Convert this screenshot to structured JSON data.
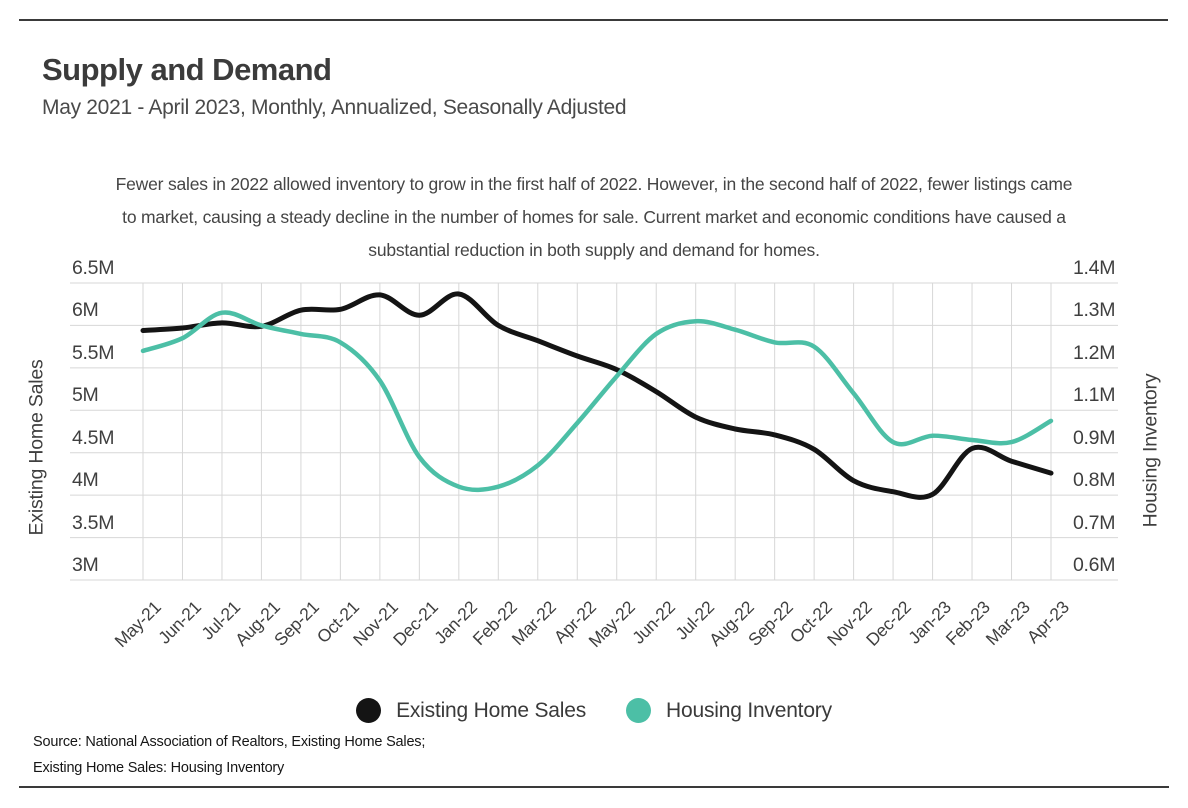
{
  "page": {
    "title": "Supply and Demand",
    "subtitle": "May 2021 - April 2023, Monthly, Annualized, Seasonally Adjusted",
    "annotation": "Fewer sales in 2022 allowed inventory to grow in the first half of 2022. However, in the second half of 2022, fewer listings came to market, causing a steady decline in the number of homes for sale. Current market and economic conditions have caused a substantial reduction in both supply and demand for homes.",
    "source_line1": "Source:  National Association of Realtors, Existing Home Sales;",
    "source_line2": "Existing Home Sales: Housing Inventory"
  },
  "legend": {
    "items": [
      {
        "label": "Existing Home Sales",
        "color": "#141414"
      },
      {
        "label": "Housing Inventory",
        "color": "#4CBFA6"
      }
    ]
  },
  "colors": {
    "sales_line": "#141414",
    "inventory_line": "#4CBFA6",
    "gridline": "#d7d7d7",
    "text_dark": "#3b3b3b"
  },
  "chart_data": {
    "type": "line",
    "title": "Supply and Demand",
    "subtitle": "May 2021 - April 2023, Monthly, Annualized, Seasonally Adjusted",
    "categories": [
      "May-21",
      "Jun-21",
      "Jul-21",
      "Aug-21",
      "Sep-21",
      "Oct-21",
      "Nov-21",
      "Dec-21",
      "Jan-22",
      "Feb-22",
      "Mar-22",
      "Apr-22",
      "May-22",
      "Jun-22",
      "Jul-22",
      "Aug-22",
      "Sep-22",
      "Oct-22",
      "Nov-22",
      "Dec-22",
      "Jan-23",
      "Feb-23",
      "Mar-23",
      "Apr-23"
    ],
    "series": [
      {
        "name": "Existing Home Sales",
        "axis": "left",
        "color": "#141414",
        "units": "millions, annualized",
        "values": [
          5.94,
          5.97,
          6.03,
          5.99,
          6.18,
          6.19,
          6.36,
          6.12,
          6.37,
          6.0,
          5.82,
          5.64,
          5.48,
          5.22,
          4.92,
          4.78,
          4.71,
          4.54,
          4.17,
          4.04,
          4.01,
          4.55,
          4.4,
          4.26
        ]
      },
      {
        "name": "Housing Inventory",
        "axis": "right",
        "color": "#4CBFA6",
        "units": "millions",
        "values": [
          1.24,
          1.27,
          1.33,
          1.3,
          1.28,
          1.26,
          1.17,
          0.89,
          0.82,
          0.82,
          0.87,
          1.04,
          1.18,
          1.28,
          1.31,
          1.29,
          1.26,
          1.25,
          1.14,
          0.95,
          0.98,
          0.96,
          0.95,
          1.05
        ]
      }
    ],
    "left_axis": {
      "label": "Existing Home Sales",
      "ticks": [
        "6.5M",
        "6M",
        "5.5M",
        "5M",
        "4.5M",
        "4M",
        "3.5M",
        "3M"
      ],
      "tick_values": [
        6.5,
        6.0,
        5.5,
        5.0,
        4.5,
        4.0,
        3.5,
        3.0
      ]
    },
    "right_axis": {
      "label": "Housing Inventory",
      "ticks": [
        "1.4M",
        "1.3M",
        "1.2M",
        "1.1M",
        "0.9M",
        "0.8M",
        "0.7M",
        "0.6M"
      ],
      "tick_values": [
        1.4,
        1.3,
        1.2,
        1.1,
        0.9,
        0.8,
        0.7,
        0.6
      ]
    },
    "grid": true,
    "legend_position": "bottom"
  }
}
